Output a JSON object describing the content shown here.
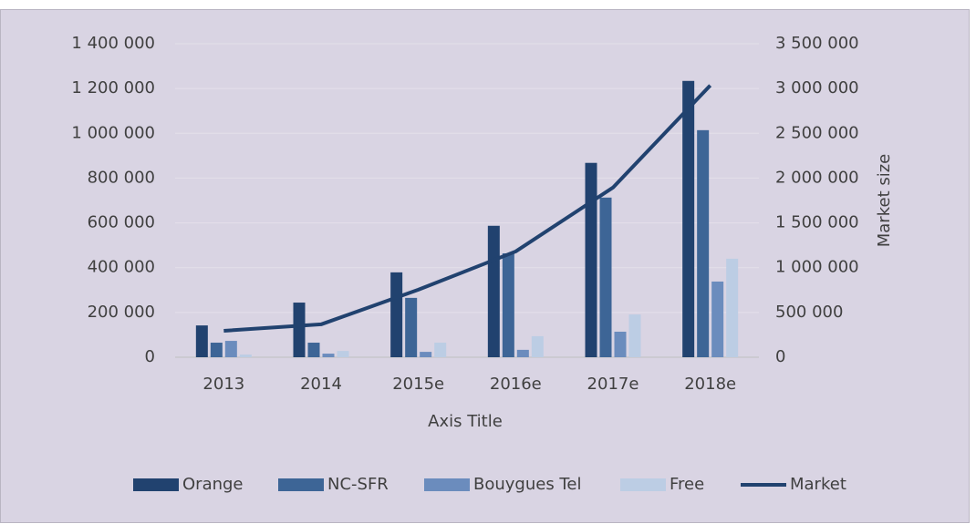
{
  "chart_data": {
    "type": "bar",
    "x_label": "Axis Title",
    "y2_label": "Market size",
    "categories": [
      "2013",
      "2014",
      "2015e",
      "2016e",
      "2017e",
      "2018e"
    ],
    "series": [
      {
        "name": "Orange",
        "type": "bar",
        "color": "#21426f",
        "values": [
          142000,
          244000,
          379000,
          587000,
          868000,
          1234000
        ]
      },
      {
        "name": "NC-SFR",
        "type": "bar",
        "color": "#3d6596",
        "values": [
          65000,
          65000,
          265000,
          464000,
          713000,
          1014000
        ]
      },
      {
        "name": "Bouygues Tel",
        "type": "bar",
        "color": "#6b8cbd",
        "values": [
          73000,
          16000,
          24000,
          33000,
          114000,
          338000
        ]
      },
      {
        "name": "Free",
        "type": "bar",
        "color": "#bccde4",
        "values": [
          12000,
          28000,
          65000,
          94000,
          191000,
          440000
        ]
      },
      {
        "name": "Market",
        "type": "line",
        "axis": "y2",
        "color": "#21426f",
        "values": [
          295000,
          367000,
          754000,
          1181000,
          1894000,
          3035000
        ]
      }
    ],
    "ylim": [
      0,
      1400000
    ],
    "yticks": [
      0,
      {
        "value": 200000,
        "label": "200 000"
      },
      {
        "value": 400000,
        "label": "400 000"
      },
      {
        "value": 600000,
        "label": "600 000"
      },
      {
        "value": 800000,
        "label": "800 000"
      },
      {
        "value": 1000000,
        "label": "1 000 000"
      },
      {
        "value": 1200000,
        "label": "1 200 000"
      },
      {
        "value": 1400000,
        "label": "1 400 000"
      }
    ],
    "y2lim": [
      0,
      3500000
    ],
    "y2ticks": [
      0,
      {
        "value": 500000,
        "label": "500 000"
      },
      {
        "value": 1000000,
        "label": "1 000 000"
      },
      {
        "value": 1500000,
        "label": "1 500 000"
      },
      {
        "value": 2000000,
        "label": "2 000 000"
      },
      {
        "value": 2500000,
        "label": "2 500 000"
      },
      {
        "value": 3000000,
        "label": "3 000 000"
      },
      {
        "value": 3500000,
        "label": "3 500 000"
      }
    ],
    "grid": true,
    "legend": "bottom"
  }
}
